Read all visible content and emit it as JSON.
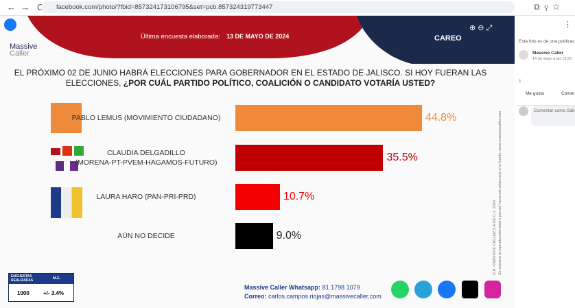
{
  "browser": {
    "url": "facebook.com/photo/?fbid=857324173106795&set=pcb.857324319773447"
  },
  "header": {
    "brand_line1": "Massive",
    "brand_line2": "Caller",
    "survey_label": "Última encuesta elaborada:",
    "survey_date": "13 DE MAYO DE 2024",
    "tag": "CAREO"
  },
  "question": {
    "lead": "EL PRÓXIMO 02 DE JUNIO HABRÁ ELECCIONES PARA GOBERNADOR EN EL ESTADO DE JALISCO. SI HOY FUERAN LAS ELECCIONES, ",
    "bold": "¿POR CUÁL PARTIDO POLÍTICO, COALICIÓN O CANDIDATO VOTARÍA USTED?"
  },
  "chart_data": {
    "type": "bar",
    "orientation": "horizontal",
    "categories": [
      "PABLO LEMUS (MOVIMIENTO CIUDADANO)",
      "CLAUDIA DELGADILLO\n(MORENA-PT-PVEM-HAGAMOS-FUTURO)",
      "LAURA HARO (PAN-PRI-PRD)",
      "AÚN NO DECIDE"
    ],
    "values": [
      44.8,
      35.5,
      10.7,
      9.0
    ],
    "value_labels": [
      "44.8%",
      "35.5%",
      "10.7%",
      "9.0%"
    ],
    "colors": [
      "#ee8a3a",
      "#c00000",
      "#f50000",
      "#000000"
    ]
  },
  "footer": {
    "col1": "ENCUESTAS REALIZADAS",
    "col2": "M.E.",
    "n": "1000",
    "me": "+/- 3.4%",
    "whatsapp_label": "Massive Caller Whatsapp:",
    "whatsapp": "81 1798 1079",
    "email_label": "Correo:",
    "email": "carlos.campos.riojas@massivecaller.com",
    "copyright": "D.R. ©MASSIVE CALLER S.A.DE C.V. 2024",
    "notice": "Se autoriza la reproducción total o parcial haciendo referencia a la fuente: www.massivecaller.com"
  },
  "sidebar": {
    "post_note": "Esta foto es de una publicac",
    "author": "Massive Caller",
    "time": "14 de mayo a las 12:30",
    "likes": "1",
    "like": "Me gusta",
    "comment": "Comer",
    "comment_as": "Comentar como Sab"
  }
}
